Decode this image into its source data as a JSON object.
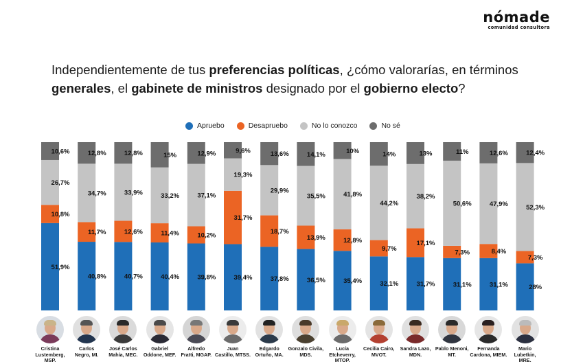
{
  "brand": {
    "name": "nómade",
    "tagline": "comunidad consultora"
  },
  "question": {
    "parts": [
      {
        "text": "Independientemente de tus ",
        "bold": false
      },
      {
        "text": "preferencias políticas",
        "bold": true
      },
      {
        "text": ", ¿cómo valorarías, en términos ",
        "bold": false
      },
      {
        "text": "generales",
        "bold": true
      },
      {
        "text": ", el ",
        "bold": false
      },
      {
        "text": "gabinete de ministros",
        "bold": true
      },
      {
        "text": " designado por el ",
        "bold": false
      },
      {
        "text": "gobierno electo",
        "bold": true
      },
      {
        "text": "?",
        "bold": false
      }
    ]
  },
  "chart_data": {
    "type": "bar",
    "stacked": true,
    "ylim": [
      0,
      100
    ],
    "grid": false,
    "legend_position": "top-center",
    "categories": [
      "Cristina Lustemberg, MSP.",
      "Carlos Negro, MI.",
      "José Carlos Mahía, MEC.",
      "Gabriel Oddone, MEF.",
      "Alfredo Fratti, MGAP.",
      "Juan Castillo, MTSS.",
      "Edgardo Ortuño, MA.",
      "Gonzalo Civila, MDS.",
      "Lucía Etcheverry, MTOP.",
      "Cecilia Cairo, MVOT.",
      "Sandra Lazo, MDN.",
      "Pablo Menoni, MT.",
      "Fernanda Cardona, MIEM.",
      "Mario Lubetkin, MRE."
    ],
    "series": [
      {
        "name": "Apruebo",
        "color": "#1f6fb8",
        "values": [
          51.9,
          40.8,
          40.7,
          40.4,
          39.8,
          39.4,
          37.8,
          36.5,
          35.4,
          32.1,
          31.7,
          31.1,
          31.1,
          28
        ]
      },
      {
        "name": "Desapruebo",
        "color": "#eb6424",
        "values": [
          10.8,
          11.7,
          12.6,
          11.4,
          10.2,
          31.7,
          18.7,
          13.9,
          12.8,
          9.7,
          17.1,
          7.3,
          8.4,
          7.3
        ]
      },
      {
        "name": "No lo conozco",
        "color": "#c4c4c4",
        "values": [
          26.7,
          34.7,
          33.9,
          33.2,
          37.1,
          19.3,
          29.9,
          35.5,
          41.8,
          44.2,
          38.2,
          50.6,
          47.9,
          52.3
        ]
      },
      {
        "name": "No sé",
        "color": "#6d6d6d",
        "values": [
          10.6,
          12.8,
          12.8,
          15,
          12.9,
          9.6,
          13.6,
          14.1,
          10,
          14,
          13,
          11,
          12.6,
          12.4
        ]
      }
    ],
    "labels": [
      [
        "51,9%",
        "10,8%",
        "26,7%",
        "10,6%"
      ],
      [
        "40,8%",
        "11,7%",
        "34,7%",
        "12,8%"
      ],
      [
        "40,7%",
        "12,6%",
        "33,9%",
        "12,8%"
      ],
      [
        "40,4%",
        "11,4%",
        "33,2%",
        "15%"
      ],
      [
        "39,8%",
        "10,2%",
        "37,1%",
        "12,9%"
      ],
      [
        "39,4%",
        "31,7%",
        "19,3%",
        "9,6%"
      ],
      [
        "37,8%",
        "18,7%",
        "29,9%",
        "13,6%"
      ],
      [
        "36,5%",
        "13,9%",
        "35,5%",
        "14,1%"
      ],
      [
        "35,4%",
        "12,8%",
        "41,8%",
        "10%"
      ],
      [
        "32,1%",
        "9,7%",
        "44,2%",
        "14%"
      ],
      [
        "31,7%",
        "17,1%",
        "38,2%",
        "13%"
      ],
      [
        "31,1%",
        "7,3%",
        "50,6%",
        "11%"
      ],
      [
        "31,1%",
        "8,4%",
        "47,9%",
        "12,6%"
      ],
      [
        "28%",
        "7,3%",
        "52,3%",
        "12,4%"
      ]
    ]
  },
  "people": [
    {
      "name_line1": "Cristina",
      "name_line2": "Lustemberg,",
      "name_line3": "MSP."
    },
    {
      "name_line1": "Carlos",
      "name_line2": "Negro, MI.",
      "name_line3": ""
    },
    {
      "name_line1": "José Carlos",
      "name_line2": "Mahía, MEC.",
      "name_line3": ""
    },
    {
      "name_line1": "Gabriel",
      "name_line2": "Oddone, MEF.",
      "name_line3": ""
    },
    {
      "name_line1": "Alfredo",
      "name_line2": "Fratti, MGAP.",
      "name_line3": ""
    },
    {
      "name_line1": "Juan",
      "name_line2": "Castillo, MTSS.",
      "name_line3": ""
    },
    {
      "name_line1": "Edgardo",
      "name_line2": "Ortuño, MA.",
      "name_line3": ""
    },
    {
      "name_line1": "Gonzalo Civila,",
      "name_line2": "MDS.",
      "name_line3": ""
    },
    {
      "name_line1": "Lucía",
      "name_line2": "Etcheverry,",
      "name_line3": "MTOP."
    },
    {
      "name_line1": "Cecilia Cairo,",
      "name_line2": "MVOT.",
      "name_line3": ""
    },
    {
      "name_line1": "Sandra Lazo,",
      "name_line2": "MDN.",
      "name_line3": ""
    },
    {
      "name_line1": "Pablo Menoni,",
      "name_line2": "MT.",
      "name_line3": ""
    },
    {
      "name_line1": "Fernanda",
      "name_line2": "Cardona, MIEM.",
      "name_line3": ""
    },
    {
      "name_line1": "Mario",
      "name_line2": "Lubetkin,",
      "name_line3": "MRE."
    }
  ],
  "portrait_colors": {
    "shirts": [
      "#7a3a5a",
      "#22354f",
      "#3b3b3b",
      "#2a2a35",
      "#4a4a55",
      "#6b6b6b",
      "#2b3a4a",
      "#4a4030",
      "#6b6b6b",
      "#b34030",
      "#7a2a2a",
      "#303540",
      "#2a2a2a",
      "#2b3040"
    ],
    "hair": [
      "#c9b48a",
      "#555555",
      "#2a2a2a",
      "#4a4a4a",
      "#777777",
      "#3a3a3a",
      "#222222",
      "#4a3a2a",
      "#c9a86a",
      "#8a6a3a",
      "#3a2a20",
      "#2a2a2a",
      "#2a2020",
      "#bbbbbb"
    ],
    "background": [
      "#d8dde3",
      "#e0e0e0",
      "#dadada",
      "#e5e5e5",
      "#d5d5d5",
      "#ececec",
      "#e2e2e2",
      "#dedede",
      "#ececec",
      "#e4e4e4",
      "#e0e0e0",
      "#d8d8d8",
      "#e6e6e6",
      "#e2e2e2"
    ]
  }
}
